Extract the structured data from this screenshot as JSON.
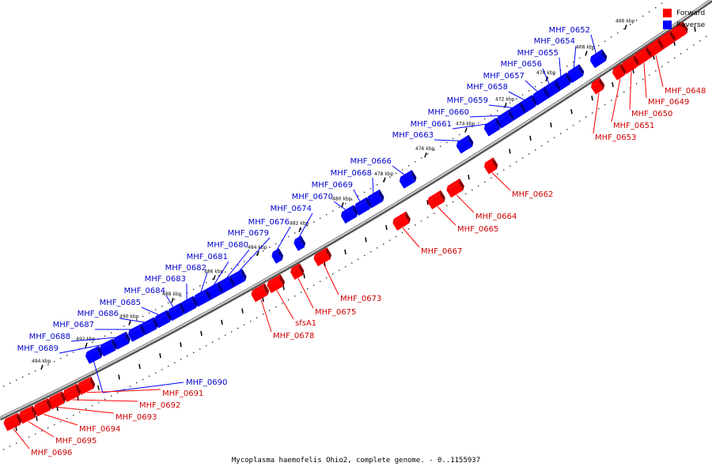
{
  "caption": "Mycoplasma haemofelis Ohio2, complete genome. - 0..1155937",
  "legend": {
    "forward_label": "Forward",
    "reverse_label": "Reverse"
  },
  "colors": {
    "forward": "#ff0000",
    "reverse": "#0000ff",
    "forward_label": "#cc0000",
    "reverse_label": "#0000cc",
    "backbone": "#999999"
  },
  "ticks": [
    "466 kbp",
    "468 kbp",
    "470 kbp",
    "472 kbp",
    "474 kbp",
    "476 kbp",
    "478 kbp",
    "480 kbp",
    "482 kbp",
    "484 kbp",
    "486 kbp",
    "488 kbp",
    "490 kbp",
    "492 kbp",
    "494 kbp"
  ],
  "forward_genes": [
    "MHF_0648",
    "MHF_0649",
    "MHF_0650",
    "MHF_0651",
    "MHF_0653",
    "MHF_0662",
    "MHF_0664",
    "MHF_0665",
    "MHF_0667",
    "MHF_0673",
    "MHF_0675",
    "sfsA1",
    "MHF_0678",
    "MHF_0691",
    "MHF_0692",
    "MHF_0693",
    "MHF_0694",
    "MHF_0695",
    "MHF_0696"
  ],
  "reverse_genes": [
    "MHF_0652",
    "MHF_0654",
    "MHF_0655",
    "MHF_0656",
    "MHF_0657",
    "MHF_0658",
    "MHF_0659",
    "MHF_0660",
    "MHF_0661",
    "MHF_0663",
    "MHF_0666",
    "MHF_0668",
    "MHF_0669",
    "MHF_0670",
    "MHF_0674",
    "MHF_0676",
    "MHF_0679",
    "MHF_0680",
    "MHF_0681",
    "MHF_0682",
    "MHF_0683",
    "MHF_0684",
    "MHF_0685",
    "MHF_0686",
    "MHF_0687",
    "MHF_0688",
    "MHF_0689",
    "MHF_0690"
  ]
}
